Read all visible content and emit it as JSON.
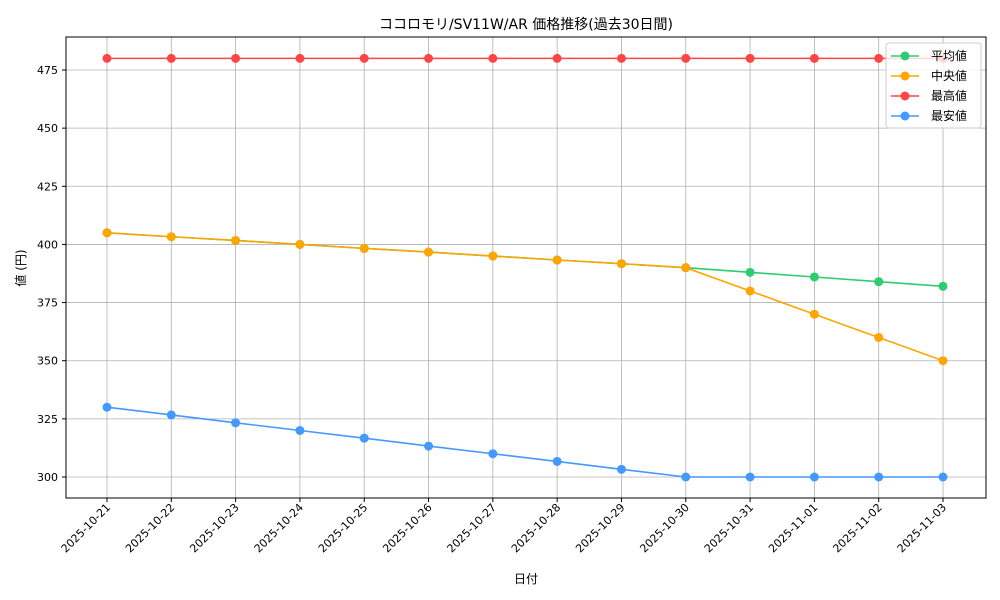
{
  "chart_data": {
    "type": "line",
    "title": "ココロモリ/SV11W/AR 価格推移(過去30日間)",
    "xlabel": "日付",
    "ylabel": "値 (円)",
    "ylim": [
      291,
      489
    ],
    "yticks": [
      300,
      325,
      350,
      375,
      400,
      425,
      450,
      475
    ],
    "grid": true,
    "legend_position": "top-right",
    "categories": [
      "2025-10-21",
      "2025-10-22",
      "2025-10-23",
      "2025-10-24",
      "2025-10-25",
      "2025-10-26",
      "2025-10-27",
      "2025-10-28",
      "2025-10-29",
      "2025-10-30",
      "2025-10-31",
      "2025-11-01",
      "2025-11-02",
      "2025-11-03"
    ],
    "series": [
      {
        "name": "平均値",
        "color": "#2ecc71",
        "values": [
          405,
          403.3,
          401.7,
          400,
          398.3,
          396.7,
          395,
          393.3,
          391.7,
          390,
          388,
          386,
          384,
          382
        ]
      },
      {
        "name": "中央値",
        "color": "#ffa500",
        "values": [
          405,
          403.3,
          401.7,
          400,
          398.3,
          396.7,
          395,
          393.3,
          391.7,
          390,
          380,
          370,
          360,
          350
        ]
      },
      {
        "name": "最高値",
        "color": "#ff4444",
        "values": [
          480,
          480,
          480,
          480,
          480,
          480,
          480,
          480,
          480,
          480,
          480,
          480,
          480,
          480
        ]
      },
      {
        "name": "最安値",
        "color": "#4499ff",
        "values": [
          330,
          326.7,
          323.3,
          320,
          316.7,
          313.3,
          310,
          306.7,
          303.3,
          300,
          300,
          300,
          300,
          300
        ]
      }
    ]
  }
}
